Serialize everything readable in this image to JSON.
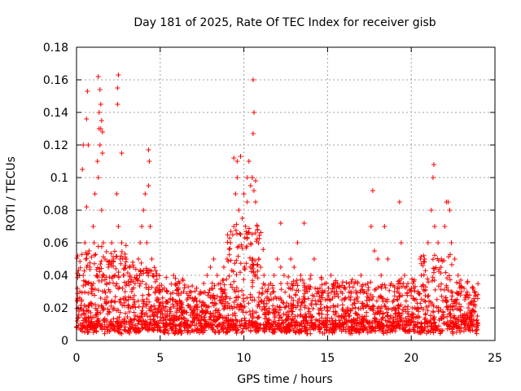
{
  "chart_data": {
    "type": "scatter",
    "title": "Day 181 of 2025, Rate Of TEC Index for receiver gisb",
    "xlabel": "GPS time / hours",
    "ylabel": "ROTI / TECUs",
    "xlim": [
      0,
      25
    ],
    "ylim": [
      0,
      0.18
    ],
    "x_ticks": [
      "0",
      "5",
      "10",
      "15",
      "20",
      "25"
    ],
    "y_ticks": [
      "0",
      "0.02",
      "0.04",
      "0.06",
      "0.08",
      "0.1",
      "0.12",
      "0.14",
      "0.16",
      "0.18"
    ],
    "x_tick_values": [
      0,
      5,
      10,
      15,
      20,
      25
    ],
    "y_tick_values": [
      0,
      0.02,
      0.04,
      0.06,
      0.08,
      0.1,
      0.12,
      0.14,
      0.16,
      0.18
    ],
    "grid": true,
    "marker": "plus",
    "color": "#ff0000",
    "series": [
      {
        "x": [
          0.05,
          0.1,
          0.15,
          0.2,
          0.3,
          0.4,
          0.5,
          0.55,
          0.6,
          0.7,
          0.75,
          0.8,
          0.9,
          1.0,
          1.05,
          1.1,
          1.2,
          1.25,
          1.3,
          1.35,
          1.4,
          1.45,
          1.5,
          1.55,
          1.6,
          1.7,
          1.8,
          1.9,
          2.0,
          2.1,
          2.2,
          2.3,
          2.4,
          2.45,
          2.5,
          2.6,
          2.7,
          2.8,
          2.9,
          3.0,
          3.1,
          3.2,
          3.3,
          3.4,
          3.5,
          3.6,
          3.7,
          3.8,
          3.9,
          4.0,
          4.1,
          4.2,
          4.3,
          4.35,
          4.4,
          4.5,
          4.6,
          4.7,
          4.8,
          4.9,
          5.0,
          5.2,
          5.4,
          5.6,
          5.8,
          6.0,
          6.2,
          6.4,
          6.6,
          6.8,
          7.0,
          7.2,
          7.4,
          7.6,
          7.8,
          8.0,
          8.2,
          8.4,
          8.6,
          8.8,
          9.0,
          9.2,
          9.4,
          9.5,
          9.6,
          9.7,
          9.8,
          9.9,
          10.0,
          10.1,
          10.2,
          10.3,
          10.4,
          10.5,
          10.55,
          10.6,
          10.7,
          10.8,
          10.9,
          11.0,
          11.2,
          11.4,
          11.6,
          11.8,
          12.0,
          12.2,
          12.4,
          12.6,
          12.8,
          13.0,
          13.2,
          13.4,
          13.6,
          13.8,
          14.0,
          14.2,
          14.4,
          14.6,
          14.8,
          15.0,
          15.2,
          15.4,
          15.6,
          15.8,
          16.0,
          16.2,
          16.4,
          16.6,
          16.8,
          17.0,
          17.2,
          17.4,
          17.6,
          17.8,
          18.0,
          18.2,
          18.4,
          18.6,
          18.8,
          19.0,
          19.2,
          19.4,
          19.6,
          19.8,
          20.0,
          20.2,
          20.4,
          20.6,
          20.8,
          21.0,
          21.2,
          21.3,
          21.4,
          21.6,
          21.8,
          22.0,
          22.2,
          22.4,
          22.6,
          22.8,
          23.0,
          23.2,
          23.4,
          23.6,
          23.8,
          23.95,
          0.6,
          0.65,
          0.7,
          1.3,
          1.35,
          1.4,
          1.45,
          2.45,
          2.5,
          10.5,
          10.55,
          10.6,
          0.35,
          0.4,
          1.5,
          1.55,
          2.7,
          4.3,
          9.4,
          9.6,
          9.8,
          10.2,
          10.7,
          12.2,
          13.6,
          17.7,
          19.3,
          21.35,
          22.1,
          22.3
        ],
        "y": [
          0.012,
          0.02,
          0.018,
          0.03,
          0.025,
          0.04,
          0.06,
          0.05,
          0.082,
          0.035,
          0.055,
          0.045,
          0.03,
          0.07,
          0.06,
          0.09,
          0.04,
          0.11,
          0.1,
          0.13,
          0.12,
          0.145,
          0.08,
          0.115,
          0.06,
          0.05,
          0.035,
          0.045,
          0.03,
          0.06,
          0.05,
          0.04,
          0.09,
          0.155,
          0.07,
          0.05,
          0.06,
          0.04,
          0.03,
          0.035,
          0.025,
          0.04,
          0.03,
          0.045,
          0.035,
          0.04,
          0.05,
          0.06,
          0.07,
          0.08,
          0.09,
          0.06,
          0.095,
          0.11,
          0.07,
          0.05,
          0.04,
          0.03,
          0.025,
          0.02,
          0.018,
          0.02,
          0.03,
          0.025,
          0.04,
          0.035,
          0.02,
          0.03,
          0.025,
          0.02,
          0.018,
          0.022,
          0.03,
          0.035,
          0.04,
          0.045,
          0.05,
          0.04,
          0.035,
          0.045,
          0.05,
          0.06,
          0.07,
          0.09,
          0.1,
          0.08,
          0.065,
          0.075,
          0.09,
          0.07,
          0.085,
          0.11,
          0.095,
          0.1,
          0.127,
          0.092,
          0.085,
          0.07,
          0.05,
          0.045,
          0.04,
          0.03,
          0.035,
          0.04,
          0.05,
          0.045,
          0.04,
          0.035,
          0.05,
          0.045,
          0.06,
          0.04,
          0.035,
          0.03,
          0.04,
          0.05,
          0.03,
          0.025,
          0.02,
          0.018,
          0.04,
          0.03,
          0.035,
          0.03,
          0.025,
          0.02,
          0.03,
          0.025,
          0.035,
          0.04,
          0.03,
          0.035,
          0.07,
          0.055,
          0.05,
          0.04,
          0.07,
          0.05,
          0.035,
          0.03,
          0.025,
          0.06,
          0.04,
          0.035,
          0.03,
          0.025,
          0.03,
          0.04,
          0.05,
          0.06,
          0.08,
          0.1,
          0.07,
          0.06,
          0.05,
          0.07,
          0.085,
          0.06,
          0.05,
          0.04,
          0.03,
          0.025,
          0.02,
          0.018,
          0.03,
          0.015,
          0.136,
          0.153,
          0.12,
          0.162,
          0.14,
          0.154,
          0.13,
          0.145,
          0.163,
          0.1,
          0.16,
          0.14,
          0.105,
          0.12,
          0.135,
          0.128,
          0.115,
          0.117,
          0.112,
          0.11,
          0.113,
          0.1,
          0.098,
          0.072,
          0.072,
          0.092,
          0.085,
          0.108,
          0.085,
          0.08
        ]
      }
    ]
  }
}
